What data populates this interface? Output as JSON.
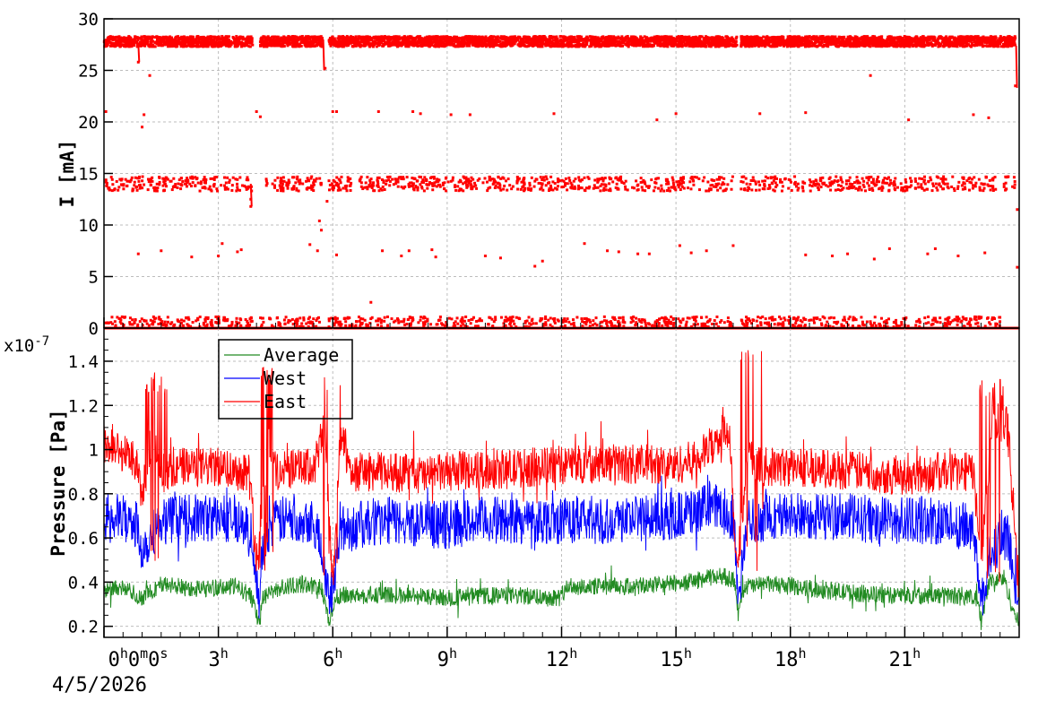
{
  "chart_data": [
    {
      "type": "scatter",
      "name": "current",
      "ylabel": "I [mA]",
      "ylim": [
        0,
        30
      ],
      "yticks": [
        0,
        5,
        10,
        15,
        20,
        25,
        30
      ],
      "xlim_hours": [
        0,
        24
      ],
      "grid": true,
      "color": "#ff0000",
      "series": [
        {
          "bands": [
            {
              "level": 27.8,
              "spread": 0.5,
              "segments": [
                [
                  0.0,
                  3.9
                ],
                [
                  4.1,
                  5.75
                ],
                [
                  5.9,
                  16.6
                ],
                [
                  16.7,
                  23.9
                ]
              ]
            },
            {
              "level": 14.0,
              "spread": 0.7,
              "segments": [
                [
                  0.05,
                  3.9
                ],
                [
                  4.2,
                  5.7
                ],
                [
                  5.9,
                  16.5
                ],
                [
                  16.7,
                  23.4
                ],
                [
                  23.6,
                  23.9
                ]
              ]
            },
            {
              "level": 0.6,
              "spread": 0.5,
              "segments": [
                [
                  0.0,
                  3.9
                ],
                [
                  4.1,
                  5.7
                ],
                [
                  5.9,
                  16.5
                ],
                [
                  16.7,
                  23.5
                ]
              ]
            },
            {
              "level": 0.0,
              "spread": 0.0,
              "segments": [
                [
                  0.0,
                  24.0
                ]
              ]
            }
          ],
          "points": [
            [
              0.05,
              21.0
            ],
            [
              1.0,
              19.5
            ],
            [
              1.05,
              20.7
            ],
            [
              1.2,
              24.5
            ],
            [
              0.9,
              25.8
            ],
            [
              4.0,
              21.0
            ],
            [
              4.1,
              20.5
            ],
            [
              5.8,
              25.2
            ],
            [
              6.0,
              21.0
            ],
            [
              6.1,
              21.0
            ],
            [
              7.2,
              21.0
            ],
            [
              8.1,
              21.0
            ],
            [
              8.3,
              20.8
            ],
            [
              9.1,
              20.7
            ],
            [
              9.6,
              20.7
            ],
            [
              11.8,
              20.8
            ],
            [
              14.5,
              20.2
            ],
            [
              15.0,
              20.8
            ],
            [
              17.2,
              20.8
            ],
            [
              18.4,
              20.9
            ],
            [
              20.1,
              24.5
            ],
            [
              21.1,
              20.2
            ],
            [
              22.8,
              20.7
            ],
            [
              23.2,
              20.4
            ],
            [
              23.9,
              23.5
            ],
            [
              3.85,
              11.8
            ],
            [
              3.85,
              12.5
            ],
            [
              5.65,
              10.4
            ],
            [
              5.7,
              9.5
            ],
            [
              5.85,
              12.3
            ],
            [
              23.95,
              11.5
            ],
            [
              0.9,
              7.2
            ],
            [
              1.5,
              7.5
            ],
            [
              2.3,
              6.9
            ],
            [
              3.0,
              7.0
            ],
            [
              3.1,
              8.2
            ],
            [
              3.5,
              7.4
            ],
            [
              3.6,
              7.6
            ],
            [
              5.4,
              8.1
            ],
            [
              5.6,
              7.5
            ],
            [
              6.1,
              7.1
            ],
            [
              7.3,
              7.5
            ],
            [
              7.8,
              7.0
            ],
            [
              8.0,
              7.5
            ],
            [
              8.6,
              7.6
            ],
            [
              8.7,
              6.9
            ],
            [
              10.0,
              7.0
            ],
            [
              10.4,
              6.8
            ],
            [
              11.3,
              6.0
            ],
            [
              11.5,
              6.5
            ],
            [
              12.6,
              8.2
            ],
            [
              13.2,
              7.5
            ],
            [
              13.5,
              7.4
            ],
            [
              14.0,
              7.2
            ],
            [
              14.3,
              7.2
            ],
            [
              15.1,
              8.0
            ],
            [
              15.4,
              7.3
            ],
            [
              15.8,
              7.5
            ],
            [
              16.5,
              8.0
            ],
            [
              18.4,
              7.1
            ],
            [
              19.1,
              7.0
            ],
            [
              19.5,
              7.2
            ],
            [
              20.2,
              6.7
            ],
            [
              20.6,
              7.7
            ],
            [
              21.6,
              7.2
            ],
            [
              21.8,
              7.7
            ],
            [
              22.4,
              7.0
            ],
            [
              23.1,
              7.3
            ],
            [
              23.95,
              5.9
            ],
            [
              7.0,
              2.5
            ]
          ]
        }
      ]
    },
    {
      "type": "line",
      "name": "pressure",
      "ylabel": "Pressure [Pa]",
      "y_multiplier": "x10",
      "y_exponent": "-7",
      "ylim": [
        0.15,
        1.55
      ],
      "yticks": [
        "0.2",
        "0.4",
        "0.6",
        "0.8",
        "1",
        "1.2",
        "1.4"
      ],
      "xlim_hours": [
        0,
        24
      ],
      "x_ticks": [
        {
          "h": 0,
          "base": "0",
          "parts": [
            {
              "t": "h",
              "sup": true
            },
            {
              "t": "0",
              "sup": false
            },
            {
              "t": "m",
              "sup": true
            },
            {
              "t": "0",
              "sup": false
            },
            {
              "t": "s",
              "sup": true
            }
          ]
        },
        {
          "h": 3,
          "base": "3",
          "parts": [
            {
              "t": "h",
              "sup": true
            }
          ]
        },
        {
          "h": 6,
          "base": "6",
          "parts": [
            {
              "t": "h",
              "sup": true
            }
          ]
        },
        {
          "h": 9,
          "base": "9",
          "parts": [
            {
              "t": "h",
              "sup": true
            }
          ]
        },
        {
          "h": 12,
          "base": "12",
          "parts": [
            {
              "t": "h",
              "sup": true
            }
          ]
        },
        {
          "h": 15,
          "base": "15",
          "parts": [
            {
              "t": "h",
              "sup": true
            }
          ]
        },
        {
          "h": 18,
          "base": "18",
          "parts": [
            {
              "t": "h",
              "sup": true
            }
          ]
        },
        {
          "h": 21,
          "base": "21",
          "parts": [
            {
              "t": "h",
              "sup": true
            }
          ]
        }
      ],
      "x_date": "4/5/2026",
      "grid": true,
      "legend_position": "top-left",
      "series": [
        {
          "name": "Average",
          "color": "#228b22",
          "profile": [
            [
              0.0,
              0.36
            ],
            [
              0.4,
              0.38
            ],
            [
              1.0,
              0.33
            ],
            [
              1.5,
              0.39
            ],
            [
              2.5,
              0.37
            ],
            [
              3.5,
              0.38
            ],
            [
              3.9,
              0.33
            ],
            [
              4.05,
              0.22
            ],
            [
              4.15,
              0.32
            ],
            [
              4.5,
              0.37
            ],
            [
              5.2,
              0.39
            ],
            [
              5.7,
              0.38
            ],
            [
              5.9,
              0.22
            ],
            [
              6.1,
              0.34
            ],
            [
              6.5,
              0.34
            ],
            [
              8.0,
              0.34
            ],
            [
              9.0,
              0.33
            ],
            [
              10.5,
              0.34
            ],
            [
              12.0,
              0.33
            ],
            [
              12.1,
              0.38
            ],
            [
              14.0,
              0.38
            ],
            [
              15.3,
              0.4
            ],
            [
              16.2,
              0.43
            ],
            [
              16.5,
              0.41
            ],
            [
              16.65,
              0.26
            ],
            [
              16.8,
              0.38
            ],
            [
              17.5,
              0.39
            ],
            [
              19.0,
              0.36
            ],
            [
              20.5,
              0.34
            ],
            [
              22.5,
              0.34
            ],
            [
              22.9,
              0.32
            ],
            [
              23.0,
              0.22
            ],
            [
              23.2,
              0.4
            ],
            [
              23.6,
              0.42
            ],
            [
              23.8,
              0.3
            ],
            [
              24.0,
              0.2
            ]
          ],
          "noise": 0.04,
          "spike": 0.06
        },
        {
          "name": "West",
          "color": "#0000ff",
          "profile": [
            [
              0.0,
              0.7
            ],
            [
              0.8,
              0.68
            ],
            [
              1.0,
              0.55
            ],
            [
              1.5,
              0.68
            ],
            [
              2.5,
              0.69
            ],
            [
              3.5,
              0.69
            ],
            [
              3.9,
              0.6
            ],
            [
              4.05,
              0.3
            ],
            [
              4.2,
              0.62
            ],
            [
              4.6,
              0.68
            ],
            [
              5.5,
              0.69
            ],
            [
              5.8,
              0.45
            ],
            [
              5.95,
              0.32
            ],
            [
              6.2,
              0.64
            ],
            [
              7.5,
              0.68
            ],
            [
              8.5,
              0.66
            ],
            [
              9.0,
              0.66
            ],
            [
              10.0,
              0.68
            ],
            [
              12.0,
              0.68
            ],
            [
              13.0,
              0.68
            ],
            [
              15.0,
              0.7
            ],
            [
              16.0,
              0.74
            ],
            [
              16.5,
              0.7
            ],
            [
              16.65,
              0.33
            ],
            [
              16.85,
              0.66
            ],
            [
              17.5,
              0.7
            ],
            [
              19.0,
              0.7
            ],
            [
              20.5,
              0.68
            ],
            [
              22.0,
              0.68
            ],
            [
              22.8,
              0.64
            ],
            [
              23.0,
              0.32
            ],
            [
              23.3,
              0.55
            ],
            [
              23.7,
              0.6
            ],
            [
              24.0,
              0.3
            ]
          ],
          "noise": 0.11,
          "spike": 0.1
        },
        {
          "name": "East",
          "color": "#ff0000",
          "profile": [
            [
              0.0,
              1.03
            ],
            [
              0.8,
              0.96
            ],
            [
              1.0,
              0.8
            ],
            [
              1.3,
              1.05
            ],
            [
              1.6,
              0.88
            ],
            [
              2.0,
              0.92
            ],
            [
              3.0,
              0.92
            ],
            [
              3.8,
              0.9
            ],
            [
              4.0,
              0.5
            ],
            [
              4.3,
              1.05
            ],
            [
              4.5,
              0.9
            ],
            [
              5.5,
              0.92
            ],
            [
              5.8,
              1.1
            ],
            [
              6.0,
              0.4
            ],
            [
              6.2,
              1.05
            ],
            [
              6.5,
              0.9
            ],
            [
              7.5,
              0.9
            ],
            [
              8.5,
              0.88
            ],
            [
              9.0,
              0.9
            ],
            [
              10.5,
              0.91
            ],
            [
              12.0,
              0.93
            ],
            [
              13.0,
              0.94
            ],
            [
              15.0,
              0.93
            ],
            [
              15.6,
              0.96
            ],
            [
              16.1,
              1.05
            ],
            [
              16.4,
              1.1
            ],
            [
              16.6,
              0.45
            ],
            [
              16.9,
              1.0
            ],
            [
              17.2,
              0.92
            ],
            [
              18.5,
              0.92
            ],
            [
              20.0,
              0.9
            ],
            [
              21.0,
              0.88
            ],
            [
              22.0,
              0.9
            ],
            [
              22.8,
              0.9
            ],
            [
              23.0,
              0.5
            ],
            [
              23.3,
              1.15
            ],
            [
              23.7,
              1.1
            ],
            [
              24.0,
              0.35
            ]
          ],
          "noise": 0.09,
          "spike": 0.12
        }
      ],
      "bursts": [
        {
          "range": [
            1.05,
            1.65
          ],
          "lo": 0.4,
          "hi": 1.35
        },
        {
          "range": [
            4.05,
            4.45
          ],
          "lo": 0.45,
          "hi": 1.4
        },
        {
          "range": [
            5.75,
            6.2
          ],
          "lo": 0.4,
          "hi": 1.35
        },
        {
          "range": [
            16.7,
            17.25
          ],
          "lo": 0.45,
          "hi": 1.45
        },
        {
          "range": [
            22.95,
            23.65
          ],
          "lo": 0.4,
          "hi": 1.33
        }
      ]
    }
  ]
}
